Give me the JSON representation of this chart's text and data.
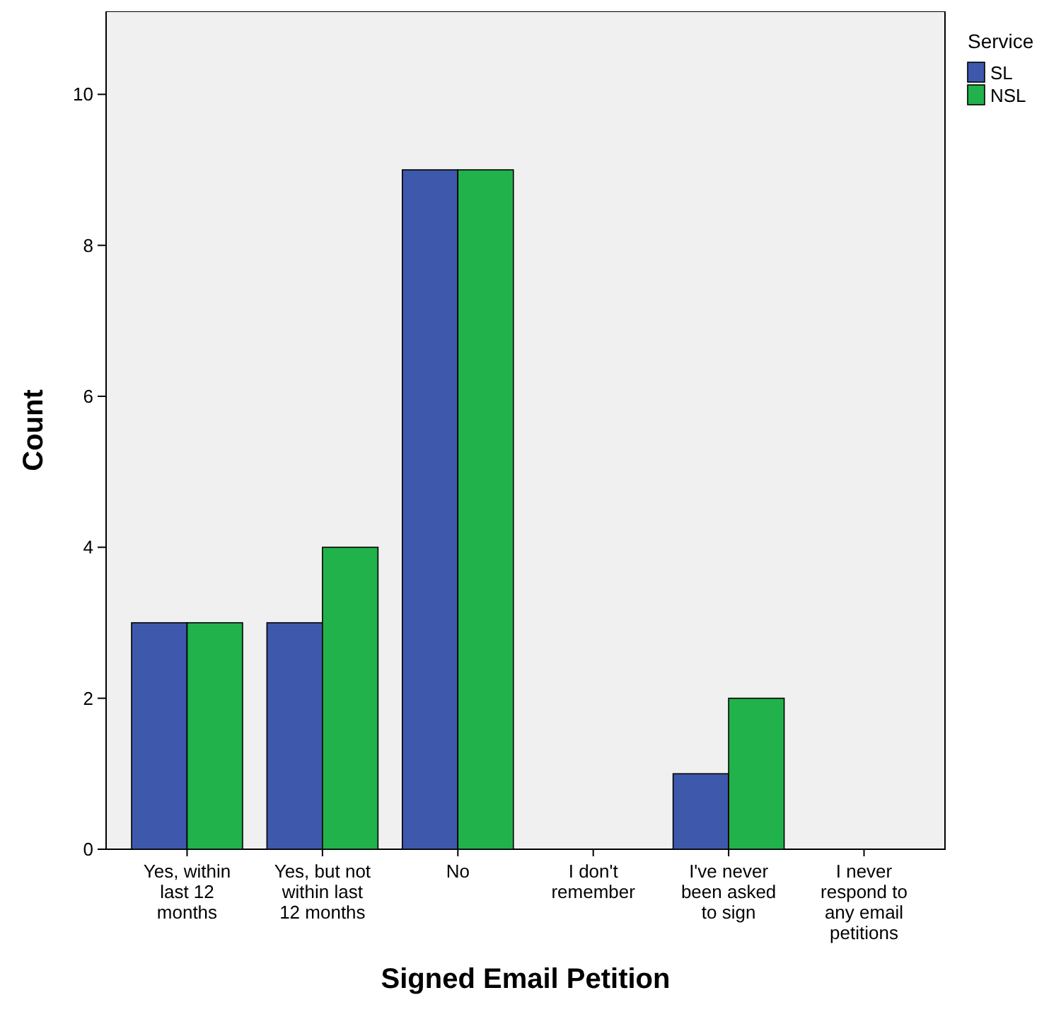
{
  "chart_data": {
    "type": "bar",
    "xlabel": "Signed Email Petition",
    "ylabel": "Count",
    "legend_title": "Service",
    "categories": [
      "Yes, within last 12 months",
      "Yes, but not within last 12 months",
      "No",
      "I don't remember",
      "I've never been asked to sign",
      "I never respond to any email petitions"
    ],
    "series": [
      {
        "name": "SL",
        "color": "#3e58ac",
        "values": [
          3,
          3,
          9,
          0,
          1,
          0
        ]
      },
      {
        "name": "NSL",
        "color": "#21b24b",
        "values": [
          3,
          4,
          9,
          0,
          2,
          0
        ]
      }
    ],
    "ylim": [
      0,
      11.1
    ],
    "yticks": [
      0,
      2,
      4,
      6,
      8,
      10
    ],
    "grid": false,
    "legend": "top right"
  }
}
